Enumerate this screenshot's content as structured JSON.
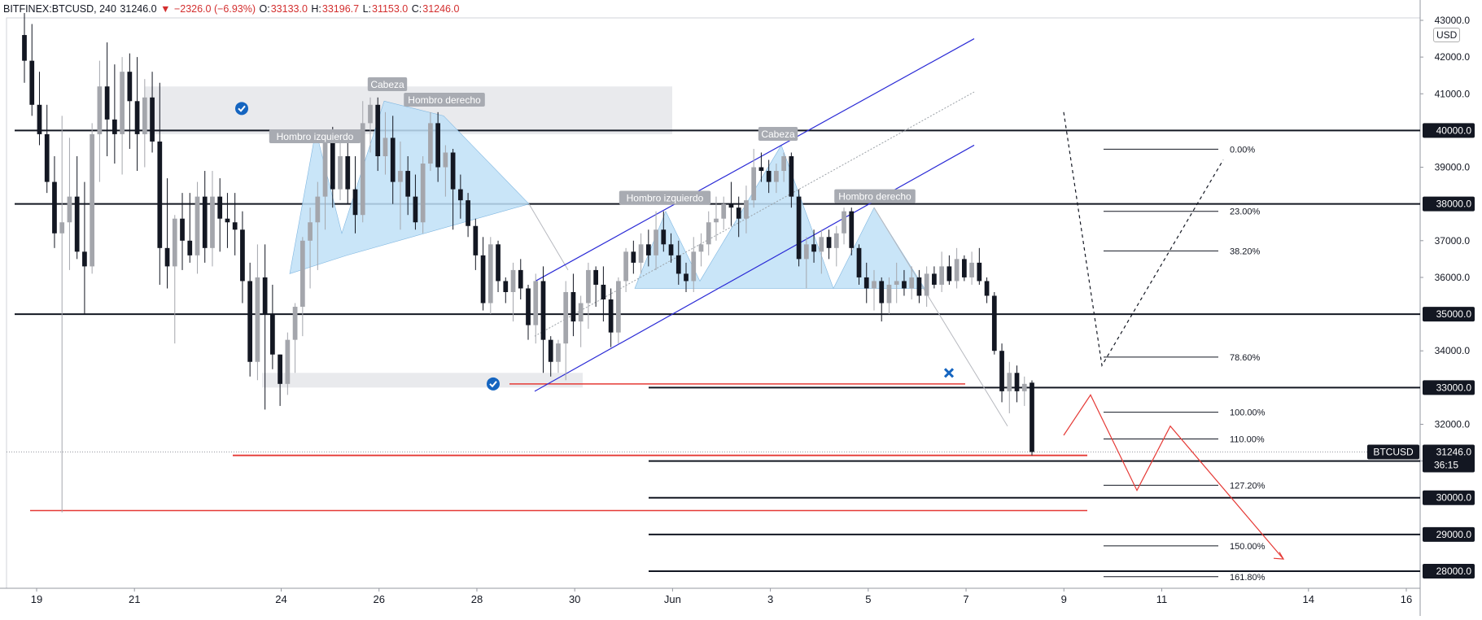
{
  "header": {
    "symbol": "BITFINEX:BTCUSD, 240",
    "last": "31246.0",
    "change_arrow": "▼",
    "change": "−2326.0 (−6.93%)",
    "o_label": "O:",
    "o_val": "33133.0",
    "h_label": "H:",
    "h_val": "33196.7",
    "l_label": "L:",
    "l_val": "31153.0",
    "c_label": "C:",
    "c_val": "31246.0"
  },
  "colors": {
    "candle_dark": "#131722",
    "candle_light": "#a4a6ac",
    "pattern_fill": "#bfe1f7",
    "channel": "#2b2bd6",
    "red": "#e53935",
    "zone": "#e9eaed",
    "check": "#1565c0"
  },
  "chart_data": {
    "type": "candlestick",
    "title": "",
    "xlabel": "",
    "ylabel": "",
    "currency": "USD",
    "ylim": [
      27600,
      43000
    ],
    "x_ticks": [
      "19",
      "21",
      "24",
      "26",
      "28",
      "30",
      "Jun",
      "3",
      "5",
      "7",
      "9",
      "11",
      "14",
      "16"
    ],
    "y_ticks": [
      "42000.0",
      "41000.0",
      "40000.0",
      "39000.0",
      "38000.0",
      "37000.0",
      "36000.0",
      "35000.0",
      "34000.0",
      "33000.0",
      "32000.0",
      "31000.0",
      "30000.0",
      "29000.0",
      "28000.0",
      "43000.0"
    ],
    "last_price_label": "31246.0",
    "last_price_symbol": "BTCUSD",
    "countdown": "36:15",
    "candles": [
      [
        42600,
        43200,
        41300,
        41900
      ],
      [
        41900,
        42900,
        40400,
        40700
      ],
      [
        40700,
        41600,
        39600,
        39900
      ],
      [
        39900,
        40700,
        38300,
        38600
      ],
      [
        38600,
        39300,
        36800,
        37200
      ],
      [
        37200,
        40400,
        29600,
        37500
      ],
      [
        37500,
        39800,
        36200,
        38200
      ],
      [
        38200,
        39300,
        36500,
        36700
      ],
      [
        36700,
        38600,
        35000,
        36300
      ],
      [
        36300,
        40200,
        36100,
        39900
      ],
      [
        39900,
        41900,
        38600,
        41200
      ],
      [
        41200,
        42400,
        39300,
        40300
      ],
      [
        40300,
        41800,
        39100,
        39900
      ],
      [
        39900,
        42000,
        38800,
        41600
      ],
      [
        41600,
        42100,
        39500,
        40800
      ],
      [
        40800,
        42000,
        38900,
        39900
      ],
      [
        39900,
        41400,
        39000,
        40900
      ],
      [
        40900,
        41600,
        39400,
        39700
      ],
      [
        39700,
        41300,
        35800,
        36800
      ],
      [
        36800,
        38700,
        35700,
        36300
      ],
      [
        36300,
        37700,
        34200,
        37600
      ],
      [
        37600,
        38300,
        36200,
        37000
      ],
      [
        37000,
        38300,
        36400,
        36600
      ],
      [
        36600,
        38600,
        36100,
        38200
      ],
      [
        38200,
        38900,
        36400,
        36800
      ],
      [
        36800,
        38900,
        36300,
        38200
      ],
      [
        38200,
        38700,
        36700,
        37600
      ],
      [
        37600,
        38300,
        36800,
        37500
      ],
      [
        37500,
        38300,
        36600,
        37300
      ],
      [
        37300,
        37800,
        35300,
        35900
      ],
      [
        35900,
        36400,
        33300,
        33700
      ],
      [
        33700,
        36900,
        33200,
        36000
      ],
      [
        36000,
        36900,
        32400,
        35000
      ],
      [
        35000,
        35800,
        33500,
        33900
      ],
      [
        33900,
        33900,
        32500,
        33100
      ],
      [
        33100,
        34500,
        32800,
        34300
      ],
      [
        34300,
        35300,
        33400,
        35200
      ],
      [
        35200,
        37100,
        34400,
        37000
      ],
      [
        37000,
        37900,
        35700,
        37500
      ],
      [
        37500,
        38600,
        36200,
        38200
      ],
      [
        38200,
        40000,
        37300,
        39700
      ],
      [
        39700,
        40100,
        37900,
        38400
      ],
      [
        38400,
        40000,
        38100,
        39300
      ],
      [
        39300,
        39800,
        38000,
        38400
      ],
      [
        38400,
        39300,
        37200,
        37700
      ],
      [
        37700,
        40800,
        37500,
        40200
      ],
      [
        40200,
        40900,
        39400,
        40700
      ],
      [
        40700,
        40900,
        38900,
        39300
      ],
      [
        39300,
        40500,
        38800,
        39800
      ],
      [
        39800,
        40400,
        38000,
        38600
      ],
      [
        38600,
        39700,
        37300,
        38900
      ],
      [
        38900,
        39300,
        37700,
        38200
      ],
      [
        38200,
        38800,
        37300,
        37500
      ],
      [
        37500,
        39300,
        37200,
        39100
      ],
      [
        39100,
        40500,
        38900,
        40200
      ],
      [
        40200,
        40500,
        38600,
        39000
      ],
      [
        39000,
        39600,
        38200,
        39400
      ],
      [
        39400,
        39500,
        37300,
        38400
      ],
      [
        38400,
        38800,
        37600,
        38100
      ],
      [
        38100,
        38300,
        37100,
        37400
      ],
      [
        37400,
        37600,
        36200,
        36600
      ],
      [
        36600,
        37100,
        35100,
        35300
      ],
      [
        35300,
        37100,
        35000,
        36900
      ],
      [
        36900,
        37000,
        35600,
        35900
      ],
      [
        35900,
        36000,
        35300,
        35600
      ],
      [
        35600,
        36400,
        34800,
        36200
      ],
      [
        36200,
        36500,
        35400,
        35700
      ],
      [
        35700,
        35800,
        34300,
        34700
      ],
      [
        34700,
        36100,
        34200,
        35900
      ],
      [
        35900,
        36300,
        33400,
        34300
      ],
      [
        34300,
        34400,
        33300,
        33700
      ],
      [
        33700,
        34300,
        33400,
        34200
      ],
      [
        34200,
        35900,
        33200,
        35600
      ],
      [
        35600,
        36100,
        34400,
        34800
      ],
      [
        34800,
        35500,
        34100,
        35300
      ],
      [
        35300,
        36400,
        34600,
        36200
      ],
      [
        36200,
        36300,
        35200,
        35800
      ],
      [
        35800,
        36300,
        34800,
        35400
      ],
      [
        35400,
        35700,
        34100,
        34500
      ],
      [
        34500,
        36000,
        34200,
        35900
      ],
      [
        35900,
        36800,
        35600,
        36700
      ],
      [
        36700,
        37000,
        36100,
        36400
      ],
      [
        36400,
        37200,
        36100,
        36900
      ],
      [
        36900,
        37300,
        36300,
        36600
      ],
      [
        36600,
        37800,
        36200,
        37300
      ],
      [
        37300,
        37800,
        36700,
        36900
      ],
      [
        36900,
        37200,
        36400,
        36600
      ],
      [
        36600,
        37000,
        35800,
        36100
      ],
      [
        36100,
        36400,
        35600,
        35900
      ],
      [
        35900,
        37100,
        35600,
        36700
      ],
      [
        36700,
        37200,
        36300,
        36900
      ],
      [
        36900,
        37800,
        36600,
        37500
      ],
      [
        37500,
        38200,
        37000,
        37600
      ],
      [
        37600,
        38200,
        37300,
        38000
      ],
      [
        38000,
        38600,
        37400,
        37900
      ],
      [
        37900,
        38200,
        37100,
        37600
      ],
      [
        37600,
        38500,
        37200,
        38100
      ],
      [
        38100,
        39500,
        37900,
        39000
      ],
      [
        39000,
        39400,
        38600,
        38900
      ],
      [
        38900,
        39200,
        38300,
        38600
      ],
      [
        38600,
        39100,
        38300,
        38900
      ],
      [
        38900,
        39400,
        38600,
        39300
      ],
      [
        39300,
        39400,
        37900,
        38200
      ],
      [
        38200,
        38400,
        36300,
        36500
      ],
      [
        36500,
        37100,
        35700,
        36900
      ],
      [
        36900,
        37300,
        36400,
        36700
      ],
      [
        36700,
        37300,
        36100,
        37100
      ],
      [
        37100,
        37300,
        36500,
        36800
      ],
      [
        36800,
        37400,
        36300,
        37200
      ],
      [
        37200,
        37900,
        36900,
        37800
      ],
      [
        37800,
        37900,
        36600,
        36800
      ],
      [
        36800,
        36900,
        35800,
        36000
      ],
      [
        36000,
        36400,
        35300,
        35700
      ],
      [
        35700,
        36200,
        35100,
        35900
      ],
      [
        35900,
        36000,
        34800,
        35300
      ],
      [
        35300,
        36000,
        35000,
        35800
      ],
      [
        35800,
        36400,
        35300,
        35900
      ],
      [
        35900,
        36200,
        35500,
        35700
      ],
      [
        35700,
        36300,
        35400,
        36000
      ],
      [
        36000,
        36200,
        35300,
        35500
      ],
      [
        35500,
        36300,
        35200,
        36100
      ],
      [
        36100,
        36300,
        35700,
        35800
      ],
      [
        35800,
        36700,
        35600,
        36300
      ],
      [
        36300,
        36600,
        35800,
        35900
      ],
      [
        35900,
        36800,
        35700,
        36500
      ],
      [
        36500,
        36600,
        35900,
        36000
      ],
      [
        36000,
        36700,
        35800,
        36400
      ],
      [
        36400,
        36800,
        35800,
        35900
      ],
      [
        35900,
        36000,
        35300,
        35500
      ],
      [
        35500,
        35600,
        33900,
        34000
      ],
      [
        34000,
        34200,
        32600,
        32900
      ],
      [
        32900,
        33700,
        32300,
        33400
      ],
      [
        33400,
        33600,
        32600,
        32900
      ],
      [
        32900,
        33300,
        32500,
        33100
      ],
      [
        33133,
        33197,
        31153,
        31246
      ]
    ],
    "levels": [
      40000,
      38000,
      35000,
      33000,
      31000,
      30000,
      29000,
      28000
    ],
    "fib_labels": [
      "0.00%",
      "23.00%",
      "38.20%",
      "78.60%",
      "100.00%",
      "110.00%",
      "127.20%",
      "150.00%",
      "161.80%"
    ],
    "fib_prices": [
      39490,
      37800,
      36720,
      33830,
      32330,
      31600,
      30340,
      28690,
      27850
    ],
    "pattern1": {
      "left_shoulder": "Hombro izquierdo",
      "head": "Cabeza",
      "right_shoulder": "Hombro derecho"
    },
    "pattern2": {
      "left_shoulder": "Hombro izquierdo",
      "head": "Cabeza",
      "right_shoulder": "Hombro derecho"
    }
  }
}
